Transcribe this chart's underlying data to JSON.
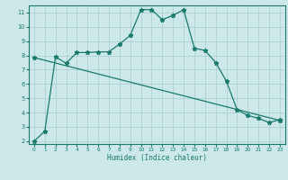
{
  "xlabel": "Humidex (Indice chaleur)",
  "xlim": [
    -0.5,
    23.5
  ],
  "ylim": [
    1.8,
    11.5
  ],
  "yticks": [
    2,
    3,
    4,
    5,
    6,
    7,
    8,
    9,
    10,
    11
  ],
  "xticks": [
    0,
    1,
    2,
    3,
    4,
    5,
    6,
    7,
    8,
    9,
    10,
    11,
    12,
    13,
    14,
    15,
    16,
    17,
    18,
    19,
    20,
    21,
    22,
    23
  ],
  "line_color": "#1a7a6e",
  "bg_color": "#cce8e8",
  "grid_color": "#a8cccc",
  "line1_x": [
    0,
    1,
    2,
    3,
    4,
    5,
    6,
    7,
    8,
    9,
    10,
    11,
    12,
    13,
    14,
    15,
    16,
    17,
    18,
    19,
    20,
    21,
    22,
    23
  ],
  "line1_y": [
    2.0,
    2.7,
    7.9,
    7.45,
    8.2,
    8.2,
    8.25,
    8.25,
    8.8,
    9.4,
    11.2,
    11.2,
    10.5,
    10.8,
    11.2,
    8.5,
    8.35,
    7.5,
    6.2,
    4.2,
    3.8,
    3.6,
    3.3,
    3.5
  ],
  "line2_x": [
    0,
    23
  ],
  "line2_y": [
    7.85,
    3.45
  ],
  "marker": "*",
  "markersize": 3.5,
  "linewidth": 0.9
}
